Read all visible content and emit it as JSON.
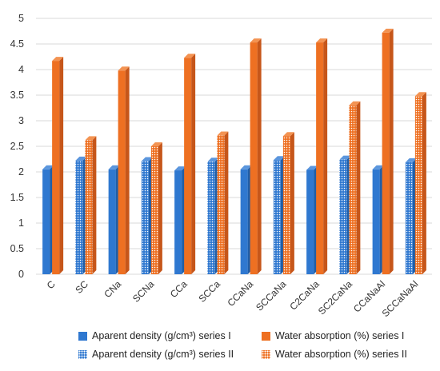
{
  "chart_data": {
    "type": "bar",
    "title": "",
    "xlabel": "",
    "ylabel": "",
    "ylim": [
      0,
      5
    ],
    "yticks": [
      "0",
      "0.5",
      "1",
      "1.5",
      "2",
      "2.5",
      "3",
      "3.5",
      "4",
      "4.5",
      "5"
    ],
    "grid": true,
    "legend_position": "bottom",
    "categories": [
      "C",
      "SC",
      "CNa",
      "SCNa",
      "CCa",
      "SCCa",
      "CCaNa",
      "SCCaNa",
      "C2CaNa",
      "SC2CaNa",
      "CCaNaAl",
      "SCCaNaAl"
    ],
    "series": [
      {
        "name": "Aparent density (g/cm³) series I",
        "color": "#2f78d0",
        "pattern": "solid",
        "values": [
          2.05,
          null,
          2.05,
          null,
          2.03,
          null,
          2.05,
          null,
          2.04,
          null,
          2.05,
          null
        ]
      },
      {
        "name": "Water absorption (%) series I",
        "color": "#ee7022",
        "pattern": "solid",
        "values": [
          4.17,
          null,
          3.98,
          null,
          4.23,
          null,
          4.53,
          null,
          4.53,
          null,
          4.72,
          null
        ]
      },
      {
        "name": "Aparent density (g/cm³) series II",
        "color": "#2f78d0",
        "pattern": "dotted",
        "values": [
          null,
          2.22,
          null,
          2.21,
          null,
          2.2,
          null,
          2.23,
          null,
          2.24,
          null,
          2.19
        ]
      },
      {
        "name": "Water absorption (%) series II",
        "color": "#ee7022",
        "pattern": "dotted",
        "values": [
          null,
          2.62,
          null,
          2.5,
          null,
          2.71,
          null,
          2.7,
          null,
          3.3,
          null,
          3.48
        ]
      }
    ]
  }
}
